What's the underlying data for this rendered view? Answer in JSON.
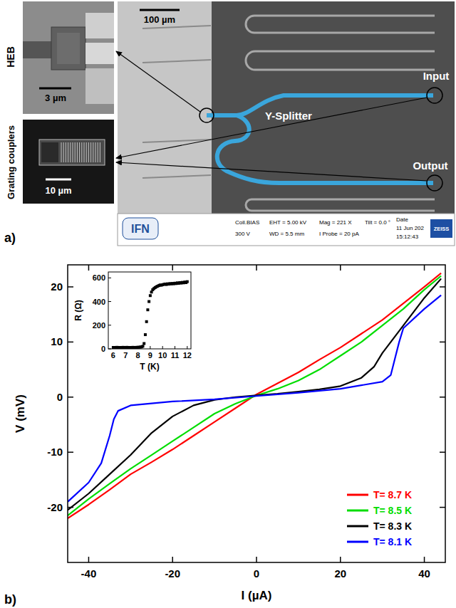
{
  "chart_data": [
    {
      "type": "line",
      "x_label": "I (µA)",
      "y_label": "V (mV)",
      "xlim": [
        -45,
        45
      ],
      "xticks": [
        -40,
        -20,
        0,
        20,
        40
      ],
      "ylim": [
        -30,
        24
      ],
      "yticks": [
        -20,
        -10,
        0,
        10,
        20
      ],
      "legend": "lower right",
      "series": [
        {
          "name": "T= 8.7 K",
          "color": "#ff0000",
          "x": [
            -45,
            -40,
            -35,
            -30,
            -25,
            -20,
            -15,
            -10,
            -5,
            0,
            5,
            10,
            15,
            20,
            25,
            30,
            35,
            40,
            44
          ],
          "values": [
            -22,
            -19.5,
            -16.8,
            -14,
            -11.8,
            -9.5,
            -7,
            -4.5,
            -2,
            0.5,
            2.5,
            4.5,
            6.8,
            9,
            11.5,
            14,
            17,
            20,
            22.5
          ]
        },
        {
          "name": "T= 8.5 K",
          "color": "#00dd00",
          "x": [
            -45,
            -40,
            -35,
            -30,
            -25,
            -20,
            -15,
            -10,
            -5,
            0,
            5,
            10,
            15,
            20,
            25,
            30,
            35,
            40,
            44
          ],
          "values": [
            -21.5,
            -18.5,
            -15.7,
            -13,
            -10.5,
            -8,
            -5.5,
            -3,
            -1.2,
            0.3,
            1.5,
            3,
            5,
            7.5,
            10,
            13,
            16,
            19.5,
            22
          ]
        },
        {
          "name": "T= 8.3 K",
          "color": "#000000",
          "x": [
            -45,
            -40,
            -35,
            -30,
            -25,
            -20,
            -15,
            -10,
            -5,
            0,
            5,
            10,
            15,
            20,
            25,
            28,
            30,
            35,
            40,
            44
          ],
          "values": [
            -20.5,
            -17.5,
            -14,
            -10.5,
            -6.5,
            -3.5,
            -1.5,
            -0.5,
            0,
            0.3,
            0.6,
            1,
            1.4,
            2,
            3.5,
            5.5,
            8,
            13,
            18,
            21.5
          ]
        },
        {
          "name": "T= 8.1 K",
          "color": "#0000ff",
          "x": [
            -45,
            -40,
            -37,
            -35,
            -34,
            -33,
            -30,
            -20,
            -10,
            0,
            10,
            20,
            30,
            32,
            33,
            34,
            35,
            40,
            44
          ],
          "values": [
            -19,
            -15.5,
            -12,
            -7,
            -4,
            -2.5,
            -1.5,
            -0.8,
            -0.4,
            0.2,
            0.8,
            1.5,
            2.8,
            4,
            7,
            10,
            12.5,
            16,
            18.5
          ]
        }
      ]
    },
    {
      "type": "scatter",
      "marker": "square",
      "color": "#000000",
      "x_label": "T (K)",
      "y_label": "R (Ω)",
      "xlim": [
        5.6,
        12.3
      ],
      "xticks": [
        6,
        7,
        8,
        9,
        10,
        11,
        12
      ],
      "ylim": [
        0,
        650
      ],
      "yticks": [
        0,
        200,
        400,
        600
      ],
      "x": [
        6.0,
        6.1,
        6.2,
        6.3,
        6.4,
        6.5,
        6.6,
        6.7,
        6.8,
        6.9,
        7.0,
        7.1,
        7.2,
        7.3,
        7.4,
        7.5,
        7.6,
        7.7,
        7.8,
        7.9,
        8.0,
        8.1,
        8.2,
        8.3,
        8.4,
        8.5,
        8.6,
        8.7,
        8.8,
        8.9,
        9.0,
        9.1,
        9.2,
        9.3,
        9.4,
        9.5,
        9.6,
        9.7,
        9.8,
        9.9,
        10.0,
        10.1,
        10.2,
        10.3,
        10.4,
        10.5,
        10.6,
        10.7,
        10.8,
        10.9,
        11.0,
        11.1,
        11.2,
        11.3,
        11.4,
        11.5,
        11.6,
        11.7,
        11.8,
        11.9,
        12.0
      ],
      "values": [
        12,
        11,
        12,
        13,
        12,
        11,
        12,
        12,
        13,
        12,
        12,
        13,
        12,
        12,
        11,
        12,
        13,
        12,
        12,
        13,
        13,
        14,
        15,
        17,
        22,
        45,
        120,
        230,
        330,
        400,
        450,
        480,
        500,
        510,
        518,
        525,
        530,
        535,
        540,
        538,
        542,
        545,
        548,
        544,
        550,
        547,
        552,
        549,
        553,
        550,
        555,
        552,
        558,
        554,
        560,
        556,
        562,
        558,
        565,
        560,
        568
      ]
    }
  ],
  "panel_a": {
    "label": "a)",
    "heb": {
      "title": "HEB",
      "scale_bar": "3 µm"
    },
    "grating": {
      "title": "Grating couplers",
      "scale_bar": "10 µm"
    },
    "sem": {
      "scale_bar": "100 µm",
      "splitter": "Y-Splitter",
      "input": "Input",
      "output": "Output",
      "info_bar": {
        "logo": "IFN",
        "fields": [
          [
            "Coll.BIAS",
            "300 V"
          ],
          [
            "EHT = 5.00 kV",
            "WD = 5.5 mm"
          ],
          [
            "Mag = 221 X",
            "I Probe = 20 pA"
          ],
          [
            "Tilt = 0.0 °"
          ],
          [
            "Date",
            "11 Jun 202",
            "15:12:43"
          ]
        ],
        "brand": "ZEISS"
      }
    }
  },
  "panel_b": {
    "label": "b)"
  }
}
